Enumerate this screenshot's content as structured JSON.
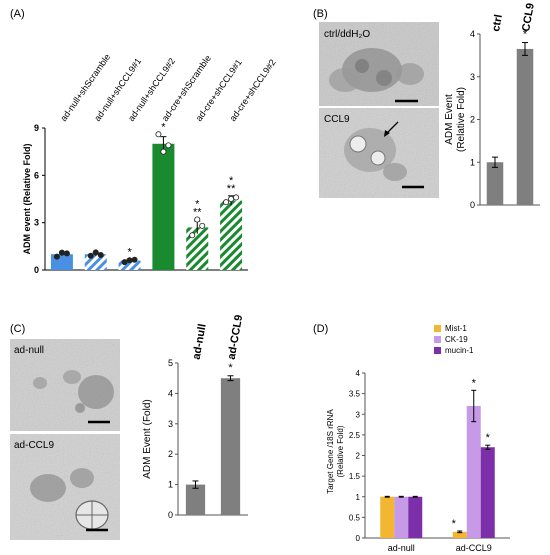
{
  "panels": {
    "A": {
      "label": "(A)"
    },
    "B": {
      "label": "(B)",
      "micrograph_labels": [
        "ctrl/ddH₂O",
        "CCL9"
      ]
    },
    "C": {
      "label": "(C)",
      "micrograph_labels": [
        "ad-null",
        "ad-CCL9"
      ]
    },
    "D": {
      "label": "(D)"
    }
  },
  "chart_data": [
    {
      "panel": "A",
      "type": "bar",
      "categories": [
        "ad-null+shScramble",
        "ad-null+shCCL9#1",
        "ad-null+shCCL9#2",
        "ad-cre+shScramble",
        "ad-cre+shCCL9#1",
        "ad-cre+shCCL9#2"
      ],
      "values": [
        1.0,
        1.0,
        0.6,
        8.0,
        2.7,
        4.4
      ],
      "errors": [
        0.1,
        0.1,
        0.08,
        0.45,
        0.4,
        0.3
      ],
      "points": [
        [
          0.85,
          1.1,
          1.05
        ],
        [
          0.9,
          1.12,
          0.95
        ],
        [
          0.5,
          0.62,
          0.65
        ],
        [
          8.6,
          7.5,
          7.9
        ],
        [
          2.2,
          3.2,
          2.8
        ],
        [
          4.3,
          4.5,
          4.6
        ]
      ],
      "significance": [
        "",
        "",
        "*",
        "*",
        "*\n**",
        "*\n**"
      ],
      "fills": [
        "#4a90e2",
        "hatch-blue",
        "hatch-blue",
        "#1a8a2e",
        "hatch-green",
        "hatch-green"
      ],
      "ylabel": "ADM event (Relative Fold)",
      "yticks": [
        0,
        3,
        6,
        9
      ],
      "ylim": [
        0,
        9
      ]
    },
    {
      "panel": "B",
      "type": "bar",
      "categories": [
        "ctrl",
        "CCL9"
      ],
      "values": [
        1.0,
        3.65
      ],
      "errors": [
        0.12,
        0.15
      ],
      "significance": [
        "",
        "*"
      ],
      "ylabel": "ADM Event\n(Relative Fold)",
      "yticks": [
        0,
        1,
        2,
        3,
        4
      ],
      "ylim": [
        0,
        4
      ]
    },
    {
      "panel": "C",
      "type": "bar",
      "categories": [
        "ad-null",
        "ad-CCL9"
      ],
      "values": [
        1.0,
        4.5
      ],
      "errors": [
        0.12,
        0.08
      ],
      "significance": [
        "",
        "*"
      ],
      "ylabel": "ADM Event (Fold)",
      "yticks": [
        0,
        1,
        2,
        3,
        4,
        5
      ],
      "ylim": [
        0,
        5
      ]
    },
    {
      "panel": "D",
      "type": "bar",
      "categories": [
        "ad-null",
        "ad-CCL9"
      ],
      "series": [
        {
          "name": "Mist-1",
          "color": "#f2b630",
          "values": [
            1.0,
            0.15
          ],
          "errors": [
            0.01,
            0.02
          ],
          "significance": [
            "",
            "*"
          ]
        },
        {
          "name": "CK-19",
          "color": "#c79ae8",
          "values": [
            1.0,
            3.2
          ],
          "errors": [
            0.01,
            0.38
          ],
          "significance": [
            "",
            "*"
          ]
        },
        {
          "name": "mucin-1",
          "color": "#7b2fa8",
          "values": [
            1.0,
            2.2
          ],
          "errors": [
            0.01,
            0.05
          ],
          "significance": [
            "",
            "*"
          ]
        }
      ],
      "ylabel": "Target Gene /18S rRNA\n(Relative Fold)",
      "yticks": [
        0,
        0.5,
        1,
        1.5,
        2,
        2.5,
        3,
        3.5,
        4
      ],
      "ylim": [
        0,
        4
      ]
    }
  ]
}
